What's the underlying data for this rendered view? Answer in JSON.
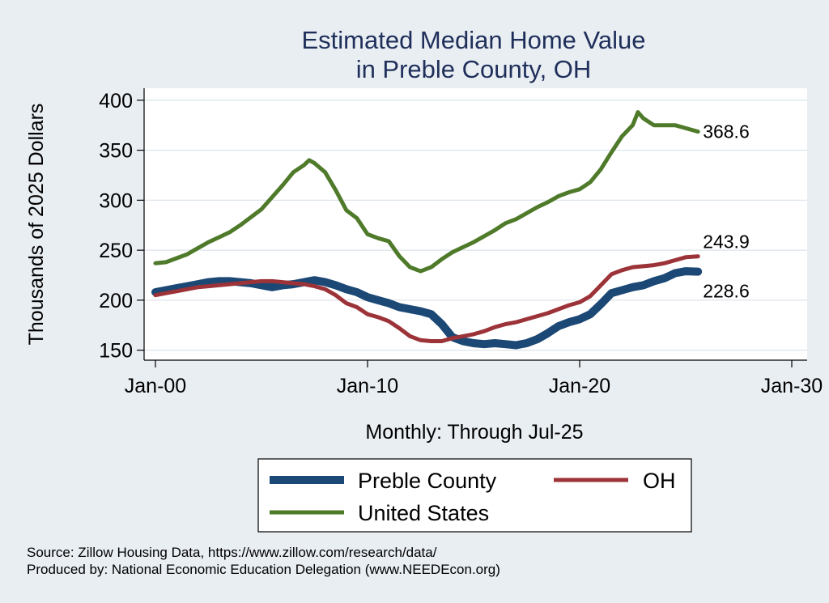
{
  "chart_data": {
    "type": "line",
    "title": [
      "Estimated Median Home Value",
      "in Preble County, OH"
    ],
    "xlabel": "Monthly: Through Jul-25",
    "ylabel": "Thousands of 2025 Dollars",
    "x_range": [
      2000,
      2030
    ],
    "y_range": [
      140,
      412
    ],
    "x_ticks": [
      {
        "value": 2000,
        "label": "Jan-00"
      },
      {
        "value": 2010,
        "label": "Jan-10"
      },
      {
        "value": 2020,
        "label": "Jan-20"
      },
      {
        "value": 2030,
        "label": "Jan-30"
      }
    ],
    "y_ticks": [
      150,
      200,
      250,
      300,
      350,
      400
    ],
    "grid": true,
    "legend_position": "bottom",
    "series": [
      {
        "name": "United States",
        "color": "#4e7a2a",
        "end_label": "368.6",
        "points": [
          [
            2000,
            237
          ],
          [
            2000.5,
            238
          ],
          [
            2001,
            242
          ],
          [
            2001.5,
            246
          ],
          [
            2002,
            252
          ],
          [
            2002.5,
            258
          ],
          [
            2003,
            263
          ],
          [
            2003.5,
            268
          ],
          [
            2004,
            275
          ],
          [
            2004.5,
            283
          ],
          [
            2005,
            291
          ],
          [
            2005.5,
            303
          ],
          [
            2006,
            315
          ],
          [
            2006.5,
            328
          ],
          [
            2007,
            335
          ],
          [
            2007.25,
            340
          ],
          [
            2007.5,
            337
          ],
          [
            2008,
            328
          ],
          [
            2008.5,
            310
          ],
          [
            2009,
            290
          ],
          [
            2009.5,
            282
          ],
          [
            2010,
            266
          ],
          [
            2010.5,
            262
          ],
          [
            2011,
            259
          ],
          [
            2011.5,
            244
          ],
          [
            2012,
            233
          ],
          [
            2012.5,
            229
          ],
          [
            2013,
            233
          ],
          [
            2013.5,
            241
          ],
          [
            2014,
            248
          ],
          [
            2014.5,
            253
          ],
          [
            2015,
            258
          ],
          [
            2015.5,
            264
          ],
          [
            2016,
            270
          ],
          [
            2016.5,
            277
          ],
          [
            2017,
            281
          ],
          [
            2017.5,
            287
          ],
          [
            2018,
            293
          ],
          [
            2018.5,
            298
          ],
          [
            2019,
            304
          ],
          [
            2019.5,
            308
          ],
          [
            2020,
            311
          ],
          [
            2020.5,
            318
          ],
          [
            2021,
            331
          ],
          [
            2021.5,
            348
          ],
          [
            2022,
            364
          ],
          [
            2022.5,
            375
          ],
          [
            2022.75,
            388
          ],
          [
            2023,
            382
          ],
          [
            2023.5,
            375
          ],
          [
            2024,
            375
          ],
          [
            2024.5,
            375
          ],
          [
            2025,
            372
          ],
          [
            2025.58,
            368.6
          ]
        ]
      },
      {
        "name": "Preble County",
        "color": "#1c4875",
        "end_label": "228.6",
        "points": [
          [
            2000,
            208
          ],
          [
            2000.5,
            210
          ],
          [
            2001,
            212
          ],
          [
            2001.5,
            214
          ],
          [
            2002,
            216
          ],
          [
            2002.5,
            218
          ],
          [
            2003,
            219
          ],
          [
            2003.5,
            219
          ],
          [
            2004,
            218
          ],
          [
            2004.5,
            217
          ],
          [
            2005,
            215
          ],
          [
            2005.5,
            213
          ],
          [
            2006,
            215
          ],
          [
            2006.5,
            216
          ],
          [
            2007,
            218
          ],
          [
            2007.5,
            220
          ],
          [
            2008,
            218
          ],
          [
            2008.5,
            215
          ],
          [
            2009,
            211
          ],
          [
            2009.5,
            208
          ],
          [
            2010,
            203
          ],
          [
            2010.5,
            200
          ],
          [
            2011,
            197
          ],
          [
            2011.5,
            193
          ],
          [
            2012,
            191
          ],
          [
            2012.5,
            189
          ],
          [
            2013,
            186
          ],
          [
            2013.5,
            176
          ],
          [
            2014,
            163
          ],
          [
            2014.5,
            159
          ],
          [
            2015,
            157
          ],
          [
            2015.5,
            156
          ],
          [
            2016,
            157
          ],
          [
            2016.5,
            156
          ],
          [
            2017,
            155
          ],
          [
            2017.5,
            157
          ],
          [
            2018,
            161
          ],
          [
            2018.5,
            167
          ],
          [
            2019,
            174
          ],
          [
            2019.5,
            178
          ],
          [
            2020,
            181
          ],
          [
            2020.5,
            186
          ],
          [
            2021,
            196
          ],
          [
            2021.5,
            207
          ],
          [
            2022,
            210
          ],
          [
            2022.5,
            213
          ],
          [
            2023,
            215
          ],
          [
            2023.5,
            219
          ],
          [
            2024,
            222
          ],
          [
            2024.5,
            227
          ],
          [
            2025,
            229
          ],
          [
            2025.58,
            228.6
          ]
        ]
      },
      {
        "name": "OH",
        "color": "#9c3339",
        "end_label": "243.9",
        "points": [
          [
            2000,
            205
          ],
          [
            2000.5,
            207
          ],
          [
            2001,
            209
          ],
          [
            2001.5,
            211
          ],
          [
            2002,
            213
          ],
          [
            2002.5,
            214
          ],
          [
            2003,
            215
          ],
          [
            2003.5,
            216
          ],
          [
            2004,
            217
          ],
          [
            2004.5,
            218
          ],
          [
            2005,
            219
          ],
          [
            2005.5,
            219
          ],
          [
            2006,
            218
          ],
          [
            2006.5,
            217
          ],
          [
            2007,
            216
          ],
          [
            2007.5,
            214
          ],
          [
            2008,
            211
          ],
          [
            2008.5,
            205
          ],
          [
            2009,
            197
          ],
          [
            2009.5,
            193
          ],
          [
            2010,
            186
          ],
          [
            2010.5,
            183
          ],
          [
            2011,
            179
          ],
          [
            2011.5,
            172
          ],
          [
            2012,
            164
          ],
          [
            2012.5,
            160
          ],
          [
            2013,
            159
          ],
          [
            2013.5,
            159
          ],
          [
            2014,
            162
          ],
          [
            2014.5,
            164
          ],
          [
            2015,
            166
          ],
          [
            2015.5,
            169
          ],
          [
            2016,
            173
          ],
          [
            2016.5,
            176
          ],
          [
            2017,
            178
          ],
          [
            2017.5,
            181
          ],
          [
            2018,
            184
          ],
          [
            2018.5,
            187
          ],
          [
            2019,
            191
          ],
          [
            2019.5,
            195
          ],
          [
            2020,
            198
          ],
          [
            2020.5,
            204
          ],
          [
            2021,
            215
          ],
          [
            2021.5,
            226
          ],
          [
            2022,
            230
          ],
          [
            2022.5,
            233
          ],
          [
            2023,
            234
          ],
          [
            2023.5,
            235
          ],
          [
            2024,
            237
          ],
          [
            2024.5,
            240
          ],
          [
            2025,
            243
          ],
          [
            2025.58,
            243.9
          ]
        ]
      }
    ]
  },
  "legend": {
    "items": [
      {
        "label": "Preble County",
        "color": "#1c4875"
      },
      {
        "label": "OH",
        "color": "#9c3339"
      },
      {
        "label": "United States",
        "color": "#4e7a2a"
      }
    ]
  },
  "source": {
    "line1": "Source: Zillow Housing Data, https://www.zillow.com/research/data/",
    "line2": "Produced by: National Economic Education Delegation (www.NEEDEcon.org)"
  }
}
